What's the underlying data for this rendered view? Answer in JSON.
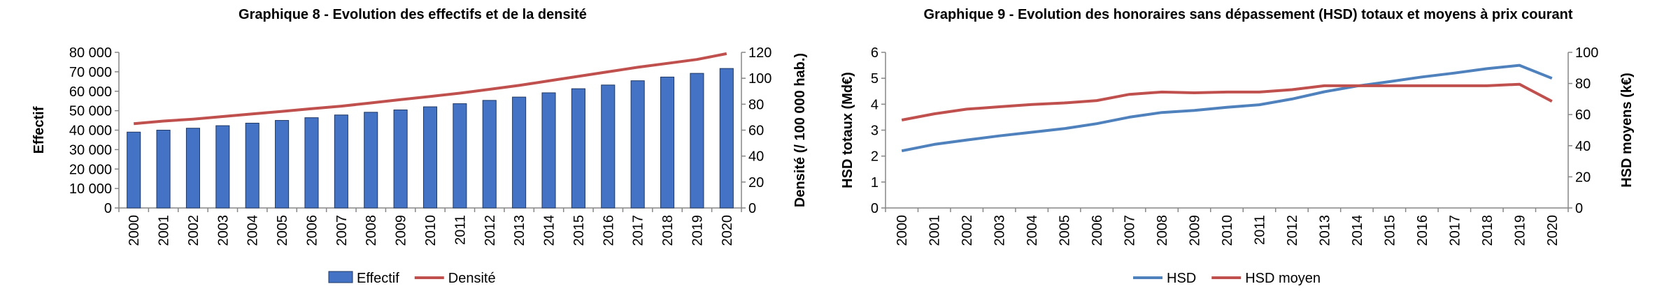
{
  "charts": {
    "left": {
      "title": "Graphique 8 - Evolution des effectifs et de la densité"
    },
    "right": {
      "title": "Graphique 9 - Evolution des honoraires sans dépassement (HSD) totaux et moyens à prix courant"
    }
  },
  "chart_data": [
    {
      "type": "bar",
      "title": "Graphique 8 - Evolution des effectifs et de la densité",
      "categories": [
        "2000",
        "2001",
        "2002",
        "2003",
        "2004",
        "2005",
        "2006",
        "2007",
        "2008",
        "2009",
        "2010",
        "2011",
        "2012",
        "2013",
        "2014",
        "2015",
        "2016",
        "2017",
        "2018",
        "2019",
        "2020"
      ],
      "series": [
        {
          "name": "Effectif",
          "type": "bar",
          "axis": "left",
          "color": "#4472C4",
          "values": [
            39000,
            40000,
            41000,
            42300,
            43600,
            45000,
            46400,
            47800,
            49200,
            50400,
            52000,
            53600,
            55300,
            57000,
            59200,
            61300,
            63200,
            65400,
            67300,
            69200,
            71700
          ]
        },
        {
          "name": "Densité",
          "type": "line",
          "axis": "right",
          "color": "#C0504D",
          "values": [
            65,
            67,
            68.5,
            70.5,
            72.5,
            74.5,
            76.5,
            78.5,
            81,
            83.5,
            86,
            88.5,
            91.5,
            94.5,
            98,
            101.5,
            105,
            108.5,
            111.5,
            114.5,
            119
          ]
        }
      ],
      "ylabel": "Effectif",
      "ylabel_right": "Densité (/ 100 000 hab.)",
      "ylim": [
        0,
        80000
      ],
      "ylim_right": [
        0,
        120
      ],
      "yticks": [
        "0",
        "10 000",
        "20 000",
        "30 000",
        "40 000",
        "50 000",
        "60 000",
        "70 000",
        "80 000"
      ],
      "yticks_right": [
        "0",
        "20",
        "40",
        "60",
        "80",
        "100",
        "120"
      ],
      "legend_position": "bottom",
      "grid": false
    },
    {
      "type": "line",
      "title": "Graphique 9 - Evolution des honoraires sans dépassement (HSD) totaux et moyens à prix courant",
      "categories": [
        "2000",
        "2001",
        "2002",
        "2003",
        "2004",
        "2005",
        "2006",
        "2007",
        "2008",
        "2009",
        "2010",
        "2011",
        "2012",
        "2013",
        "2014",
        "2015",
        "2016",
        "2017",
        "2018",
        "2019",
        "2020"
      ],
      "series": [
        {
          "name": "HSD",
          "axis": "left",
          "color": "#4F81BD",
          "values": [
            2.2,
            2.45,
            2.62,
            2.78,
            2.92,
            3.06,
            3.25,
            3.5,
            3.68,
            3.76,
            3.88,
            3.98,
            4.2,
            4.48,
            4.7,
            4.87,
            5.05,
            5.2,
            5.37,
            5.5,
            5.0
          ]
        },
        {
          "name": "HSD moyen",
          "axis": "right",
          "color": "#C0504D",
          "values": [
            56.5,
            60.5,
            63.5,
            65,
            66.5,
            67.5,
            69,
            73,
            74.5,
            74,
            74.5,
            74.5,
            76,
            78.5,
            78.5,
            78.5,
            78.5,
            78.5,
            78.5,
            79.5,
            68.5
          ]
        }
      ],
      "ylabel": "HSD totaux (Md€)",
      "ylabel_right": "HSD moyens (k€)",
      "ylim": [
        0,
        6
      ],
      "ylim_right": [
        0,
        100
      ],
      "yticks": [
        "0",
        "1",
        "2",
        "3",
        "4",
        "5",
        "6"
      ],
      "yticks_right": [
        "0",
        "20",
        "40",
        "60",
        "80",
        "100"
      ],
      "legend_position": "bottom",
      "grid": false
    }
  ]
}
